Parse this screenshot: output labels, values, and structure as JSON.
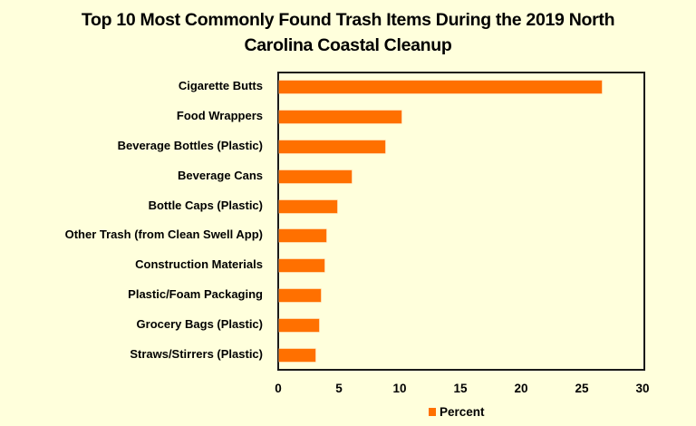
{
  "chart_data": {
    "type": "bar",
    "orientation": "horizontal",
    "title": "Top 10 Most Commonly Found Trash Items During the 2019 North Carolina Coastal Cleanup",
    "title_lines": [
      "Top 10 Most Commonly Found Trash Items During the 2019 North",
      "Carolina Coastal Cleanup"
    ],
    "xlabel": "",
    "ylabel": "",
    "categories": [
      "Cigarette Butts",
      "Food Wrappers",
      "Beverage Bottles (Plastic)",
      "Beverage Cans",
      "Bottle Caps (Plastic)",
      "Other Trash (from Clean Swell App)",
      "Construction Materials",
      "Plastic/Foam Packaging",
      "Grocery Bags (Plastic)",
      "Straws/Stirrers (Plastic)"
    ],
    "series": [
      {
        "name": "Percent",
        "color": "#ff7000",
        "values": [
          26.6,
          10.1,
          8.7,
          6.0,
          4.8,
          3.9,
          3.7,
          3.4,
          3.3,
          3.0
        ]
      }
    ],
    "xlim": [
      0,
      30
    ],
    "xticks": [
      "0",
      "5",
      "10",
      "15",
      "20",
      "25",
      "30"
    ],
    "grid": false,
    "legend": {
      "position": "bottom",
      "entries": [
        "Percent"
      ]
    },
    "background": "#ffffdc"
  }
}
